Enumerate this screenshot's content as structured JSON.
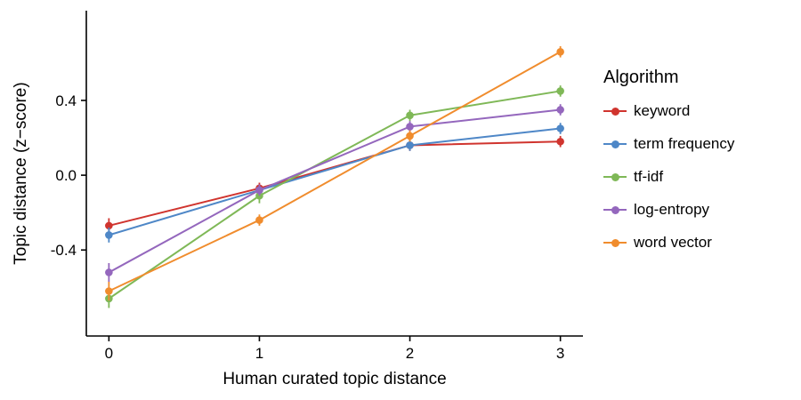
{
  "chart_data": {
    "type": "line",
    "title": "",
    "xlabel": "Human curated topic distance",
    "ylabel": "Topic distance (z−score)",
    "legend_title": "Algorithm",
    "legend_position": "right",
    "grid": false,
    "background": "#ffffff",
    "axis_color": "#000000",
    "x": [
      0,
      1,
      2,
      3
    ],
    "x_tick_labels": [
      "0",
      "1",
      "2",
      "3"
    ],
    "y_ticks": [
      -0.4,
      0.0,
      0.4
    ],
    "y_tick_labels": [
      "-0.4",
      "0.0",
      "0.4"
    ],
    "xlim": [
      -0.15,
      3.15
    ],
    "ylim": [
      -0.86,
      0.88
    ],
    "series": [
      {
        "name": "keyword",
        "color": "#d0342e",
        "values": [
          -0.27,
          -0.07,
          0.16,
          0.18
        ],
        "errors": [
          0.04,
          0.03,
          0.03,
          0.03
        ]
      },
      {
        "name": "term frequency",
        "color": "#4e87c7",
        "values": [
          -0.32,
          -0.08,
          0.16,
          0.25
        ],
        "errors": [
          0.04,
          0.03,
          0.03,
          0.03
        ]
      },
      {
        "name": "tf-idf",
        "color": "#7fb857",
        "values": [
          -0.66,
          -0.11,
          0.32,
          0.45
        ],
        "errors": [
          0.05,
          0.04,
          0.03,
          0.03
        ]
      },
      {
        "name": "log-entropy",
        "color": "#9467bd",
        "values": [
          -0.52,
          -0.08,
          0.26,
          0.35
        ],
        "errors": [
          0.05,
          0.03,
          0.03,
          0.03
        ]
      },
      {
        "name": "word vector",
        "color": "#f08c2d",
        "values": [
          -0.62,
          -0.24,
          0.21,
          0.66
        ],
        "errors": [
          0.05,
          0.03,
          0.03,
          0.03
        ]
      }
    ]
  }
}
